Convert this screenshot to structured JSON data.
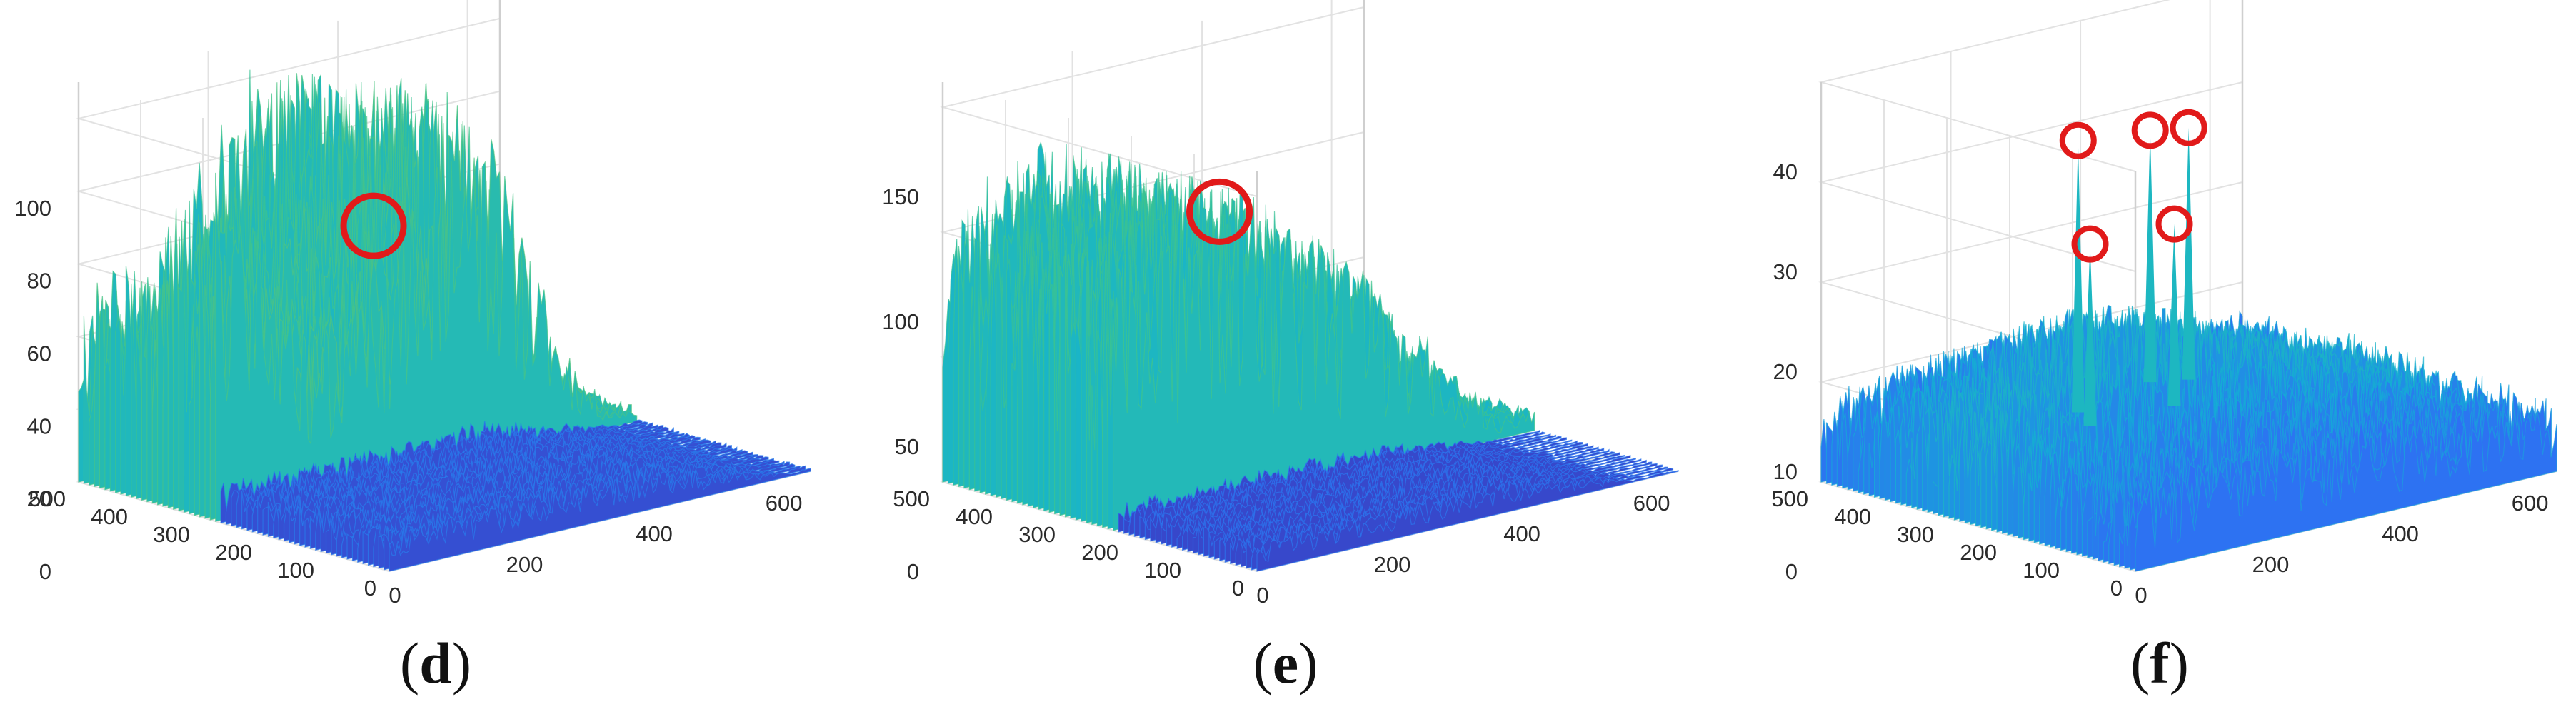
{
  "chart_data": [
    {
      "type": "surface3d",
      "panel_label": "d",
      "z_ticks": [
        "0",
        "20",
        "40",
        "60",
        "80",
        "100"
      ],
      "zlim": [
        0,
        110
      ],
      "y_ticks": [
        "0",
        "100",
        "200",
        "300",
        "400",
        "500"
      ],
      "ylim": [
        0,
        500
      ],
      "x_ticks": [
        "0",
        "200",
        "400",
        "600"
      ],
      "xlim": [
        0,
        650
      ],
      "colormap": [
        "#3e26a8",
        "#2e6ff3",
        "#12b2d3",
        "#3ec48c",
        "#b8c13d",
        "#f4b93a"
      ],
      "marker_color": "#e11a1a",
      "markers": [
        {
          "x": 340,
          "y": 380,
          "z": 62
        }
      ],
      "grid": true
    },
    {
      "type": "surface3d",
      "panel_label": "e",
      "z_ticks": [
        "0",
        "50",
        "100",
        "150"
      ],
      "zlim": [
        0,
        160
      ],
      "y_ticks": [
        "0",
        "100",
        "200",
        "300",
        "400",
        "500"
      ],
      "ylim": [
        0,
        500
      ],
      "x_ticks": [
        "0",
        "200",
        "400",
        "600"
      ],
      "xlim": [
        0,
        650
      ],
      "colormap": [
        "#3e26a8",
        "#2e6ff3",
        "#12b2d3",
        "#3ec48c",
        "#b8c13d",
        "#f4b93a"
      ],
      "marker_color": "#e11a1a",
      "markers": [
        {
          "x": 330,
          "y": 400,
          "z": 95
        }
      ],
      "grid": true
    },
    {
      "type": "surface3d",
      "panel_label": "f",
      "z_ticks": [
        "0",
        "10",
        "20",
        "30",
        "40"
      ],
      "zlim": [
        0,
        40
      ],
      "y_ticks": [
        "0",
        "100",
        "200",
        "300",
        "400",
        "500"
      ],
      "ylim": [
        0,
        500
      ],
      "x_ticks": [
        "0",
        "200",
        "400",
        "600"
      ],
      "xlim": [
        0,
        650
      ],
      "colormap": [
        "#3e26a8",
        "#2e6ff3",
        "#12b2d3",
        "#3ec48c",
        "#b8c13d",
        "#f4b93a"
      ],
      "marker_color": "#e11a1a",
      "markers": [
        {
          "x": 250,
          "y": 330,
          "z": 23
        },
        {
          "x": 280,
          "y": 380,
          "z": 32
        },
        {
          "x": 380,
          "y": 330,
          "z": 23
        },
        {
          "x": 430,
          "y": 420,
          "z": 30
        },
        {
          "x": 470,
          "y": 400,
          "z": 30
        }
      ],
      "grid": true
    }
  ]
}
